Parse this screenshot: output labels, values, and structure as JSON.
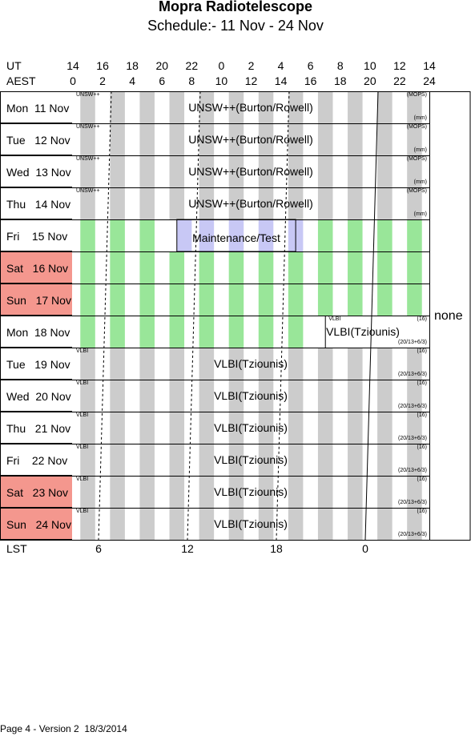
{
  "header": {
    "title": "Mopra Radiotelescope",
    "subtitle": "Schedule:- 11 Nov - 24 Nov"
  },
  "axes": {
    "ut_label": "UT",
    "aest_label": "AEST",
    "lst_label": "LST",
    "ut_ticks": [
      "14",
      "16",
      "18",
      "20",
      "22",
      "0",
      "2",
      "4",
      "6",
      "8",
      "10",
      "12",
      "14"
    ],
    "aest_ticks": [
      "0",
      "2",
      "4",
      "6",
      "8",
      "10",
      "12",
      "14",
      "16",
      "18",
      "20",
      "22",
      "24"
    ],
    "lst_ticks": [
      "6",
      "12",
      "18",
      "0"
    ]
  },
  "days": [
    {
      "label": "Mon  11 Nov",
      "weekend": false
    },
    {
      "label": "Tue   12 Nov",
      "weekend": false
    },
    {
      "label": "Wed  13 Nov",
      "weekend": false
    },
    {
      "label": "Thu   14 Nov",
      "weekend": false
    },
    {
      "label": "Fri    15 Nov",
      "weekend": false
    },
    {
      "label": "Sat   16 Nov",
      "weekend": true
    },
    {
      "label": "Sun   17 Nov",
      "weekend": true
    },
    {
      "label": "Mon  18 Nov",
      "weekend": false
    },
    {
      "label": "Tue   19 Nov",
      "weekend": false
    },
    {
      "label": "Wed  20 Nov",
      "weekend": false
    },
    {
      "label": "Thu   21 Nov",
      "weekend": false
    },
    {
      "label": "Fri    22 Nov",
      "weekend": false
    },
    {
      "label": "Sat   23 Nov",
      "weekend": true
    },
    {
      "label": "Sun   24 Nov",
      "weekend": true
    }
  ],
  "bookings": {
    "unsw": {
      "text": "UNSW++(Burton/Rowell)",
      "tag": "UNSW++",
      "mode": "(MOPS)",
      "note": "(mm)"
    },
    "maintenance": {
      "text": "Maintenance/Test"
    },
    "vlbi": {
      "text": "VLBI(Tziounis)",
      "tag": "VLBI",
      "mode": "(16)",
      "note": "(20/13+6/3)"
    }
  },
  "side_note": "none",
  "footer": "Page 4 - Version 2  18/3/2014",
  "colors": {
    "weekend": "#f4978e",
    "stripe_grey": "#cccccc",
    "stripe_green": "#99e699",
    "maintenance": "#c8c8f5"
  }
}
